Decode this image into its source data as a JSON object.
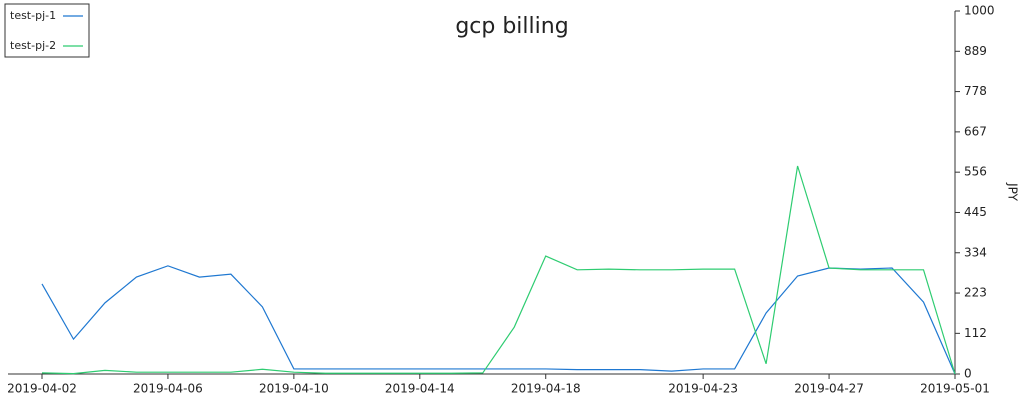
{
  "chart_data": {
    "type": "line",
    "title": "gcp billing",
    "y_axis_label": "JPY",
    "categories": [
      "2019-04-02",
      null,
      null,
      null,
      "2019-04-06",
      null,
      null,
      null,
      "2019-04-10",
      null,
      null,
      null,
      "2019-04-14",
      null,
      null,
      null,
      "2019-04-18",
      null,
      null,
      null,
      null,
      "2019-04-23",
      null,
      null,
      null,
      "2019-04-27",
      null,
      null,
      null,
      "2019-05-01"
    ],
    "series": [
      {
        "name": "test-pj-1",
        "color": "#1f78d1",
        "values": [
          248,
          96,
          196,
          267,
          298,
          267,
          275,
          185,
          14,
          14,
          14,
          14,
          14,
          14,
          14,
          14,
          14,
          12,
          12,
          12,
          8,
          14,
          14,
          168,
          270,
          292,
          289,
          292,
          198,
          0
        ]
      },
      {
        "name": "test-pj-2",
        "color": "#2ecc71",
        "values": [
          3,
          1,
          10,
          5,
          5,
          5,
          5,
          13,
          5,
          2,
          2,
          2,
          2,
          2,
          3,
          129,
          325,
          287,
          289,
          287,
          287,
          289,
          289,
          28,
          573,
          292,
          287,
          287,
          287,
          0
        ]
      }
    ],
    "ylim": [
      0,
      1000
    ],
    "yticks": [
      0,
      112,
      223,
      334,
      445,
      556,
      667,
      778,
      889,
      1000
    ],
    "y_axis_side": "right",
    "legend": "top-left"
  }
}
